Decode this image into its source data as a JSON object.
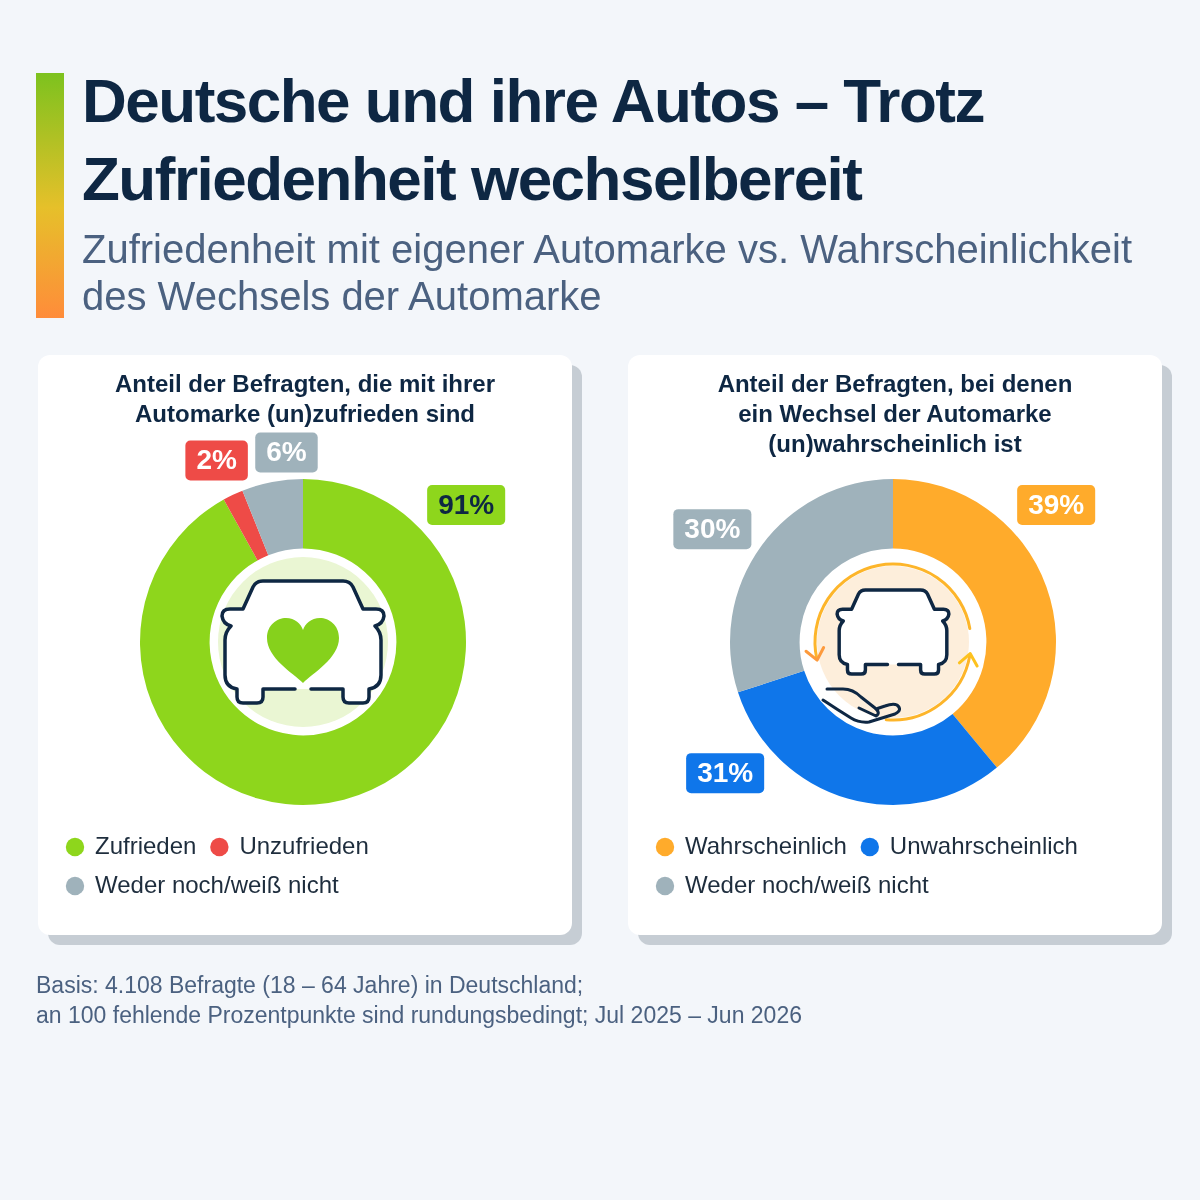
{
  "chart_data": [
    {
      "type": "other",
      "title": "Deutsche und ihre Autos – Trotz Zufriedenheit wechselbereit",
      "subtitle": "Zufriedenheit mit eigener Automarke vs. Wahrscheinlichkeit des Wechsels der Automarke"
    },
    {
      "type": "donut",
      "title": "Anteil der Befragten, die mit ihrer Automarke (un)zufrieden sind",
      "categories": [
        "Zufrieden",
        "Unzufrieden",
        "Weder noch/weiß nicht"
      ],
      "values": [
        91,
        2,
        6
      ],
      "colors": [
        "#8ed61c",
        "#ee4b47",
        "#9fb2bb"
      ],
      "value_labels": [
        "91%",
        "2%",
        "6%"
      ],
      "legend": "bottom"
    },
    {
      "type": "donut",
      "title": "Anteil der Befragten, bei denen ein Wechsel der Automarke (un)wahrscheinlich ist",
      "categories": [
        "Wahrscheinlich",
        "Unwahrscheinlich",
        "Weder noch/weiß nicht"
      ],
      "values": [
        39,
        31,
        30
      ],
      "colors": [
        "#ffab2b",
        "#0f76ea",
        "#9fb2bb"
      ],
      "value_labels": [
        "39%",
        "31%",
        "30%"
      ],
      "legend": "bottom"
    },
    {
      "type": "other",
      "annotations": [
        "Basis: 4.108 Befragte (18 – 64 Jahre) in Deutschland;",
        "an 100 fehlende Prozentpunkte sind rundungsbedingt; Jul 2025 – Jun 2026"
      ]
    }
  ]
}
